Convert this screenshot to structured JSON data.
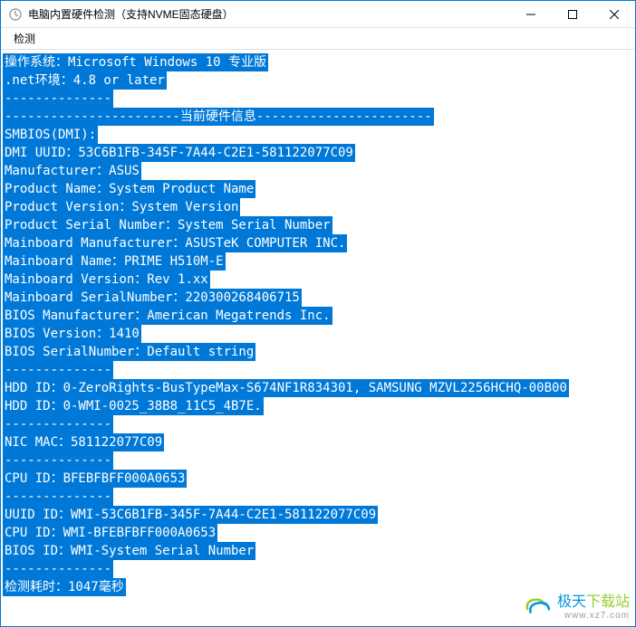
{
  "window": {
    "title": "电脑内置硬件检测（支持NVME固态硬盘）"
  },
  "menu": {
    "detect": "检测"
  },
  "lines": [
    "操作系统：Microsoft Windows 10 专业版",
    ".net环境：4.8 or later",
    "--------------",
    "-----------------------当前硬件信息-----------------------",
    "SMBIOS(DMI):",
    "DMI UUID：53C6B1FB-345F-7A44-C2E1-581122077C09",
    "Manufacturer：ASUS",
    "Product Name：System Product Name",
    "Product Version：System Version",
    "Product Serial Number：System Serial Number",
    "Mainboard Manufacturer：ASUSTeK COMPUTER INC.",
    "Mainboard Name：PRIME H510M-E",
    "Mainboard Version：Rev 1.xx",
    "Mainboard SerialNumber：220300268406715",
    "BIOS Manufacturer：American Megatrends Inc.",
    "BIOS Version：1410",
    "BIOS SerialNumber：Default string",
    "--------------",
    "HDD ID：0-ZeroRights-BusTypeMax-S674NF1R834301, SAMSUNG MZVL2256HCHQ-00B00",
    "HDD ID：0-WMI-0025_38B8_11C5_4B7E.",
    "--------------",
    "NIC MAC：581122077C09",
    "--------------",
    "CPU ID：BFEBFBFF000A0653",
    "--------------",
    "UUID ID：WMI-53C6B1FB-345F-7A44-C2E1-581122077C09",
    "CPU ID：WMI-BFEBFBFF000A0653",
    "BIOS ID：WMI-System Serial Number",
    "--------------",
    "检测耗时：1047毫秒"
  ],
  "watermark": {
    "text1": "极天",
    "text2": "下载站",
    "sub": "www.xz7.com"
  },
  "colors": {
    "highlight_bg": "#0078d7",
    "highlight_fg": "#ffffff",
    "window_border": "#0078d7"
  }
}
